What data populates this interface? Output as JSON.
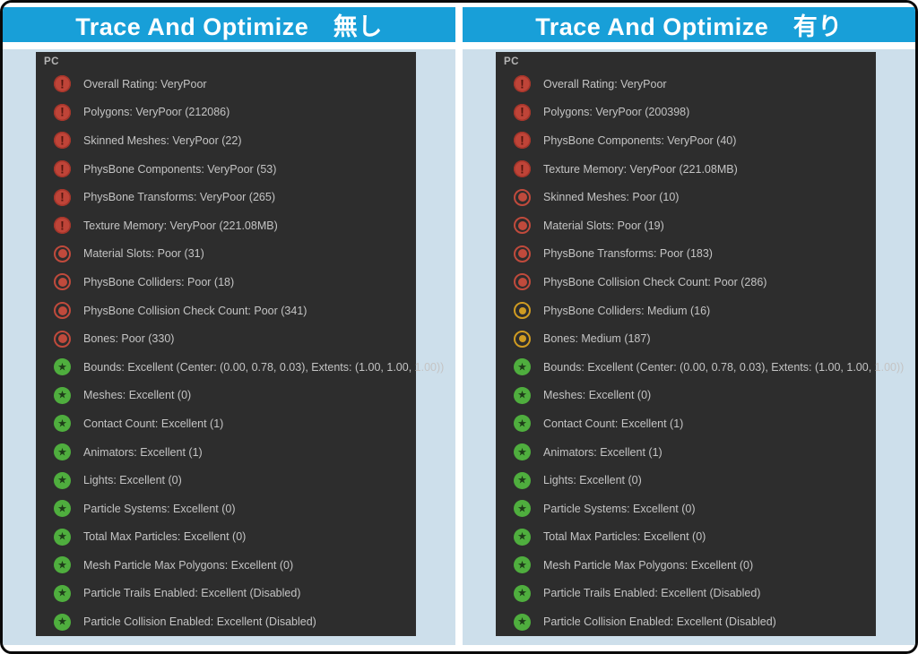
{
  "colors": {
    "header_blue": "#189fd8",
    "content_light_blue": "#cddfeb",
    "panel_dark": "#2d2d2d",
    "rating_verypoor": "#bf4438",
    "rating_poor": "#c04a3c",
    "rating_medium": "#cf9b22",
    "rating_excellent": "#4fae3e",
    "text_gray": "#c4c4c4"
  },
  "panels": [
    {
      "header": "Trace And Optimize　無し",
      "platform_label": "PC",
      "items": [
        {
          "rating": "verypoor",
          "text": "Overall Rating: VeryPoor"
        },
        {
          "rating": "verypoor",
          "text": "Polygons: VeryPoor (212086)"
        },
        {
          "rating": "verypoor",
          "text": "Skinned Meshes: VeryPoor (22)"
        },
        {
          "rating": "verypoor",
          "text": "PhysBone Components: VeryPoor (53)"
        },
        {
          "rating": "verypoor",
          "text": "PhysBone Transforms: VeryPoor (265)"
        },
        {
          "rating": "verypoor",
          "text": "Texture Memory: VeryPoor (221.08MB)"
        },
        {
          "rating": "poor",
          "text": "Material Slots: Poor (31)"
        },
        {
          "rating": "poor",
          "text": "PhysBone Colliders: Poor (18)"
        },
        {
          "rating": "poor",
          "text": "PhysBone Collision Check Count: Poor (341)"
        },
        {
          "rating": "poor",
          "text": "Bones: Poor (330)"
        },
        {
          "rating": "excellent",
          "text": "Bounds: Excellent (Center: (0.00, 0.78, 0.03), Extents: (1.00, 1.00, 1.00))"
        },
        {
          "rating": "excellent",
          "text": "Meshes: Excellent (0)"
        },
        {
          "rating": "excellent",
          "text": "Contact Count: Excellent (1)"
        },
        {
          "rating": "excellent",
          "text": "Animators: Excellent (1)"
        },
        {
          "rating": "excellent",
          "text": "Lights: Excellent (0)"
        },
        {
          "rating": "excellent",
          "text": "Particle Systems: Excellent (0)"
        },
        {
          "rating": "excellent",
          "text": "Total Max Particles: Excellent (0)"
        },
        {
          "rating": "excellent",
          "text": "Mesh Particle Max Polygons: Excellent (0)"
        },
        {
          "rating": "excellent",
          "text": "Particle Trails Enabled: Excellent (Disabled)"
        },
        {
          "rating": "excellent",
          "text": "Particle Collision Enabled: Excellent (Disabled)"
        }
      ]
    },
    {
      "header": "Trace And Optimize　有り",
      "platform_label": "PC",
      "items": [
        {
          "rating": "verypoor",
          "text": "Overall Rating: VeryPoor"
        },
        {
          "rating": "verypoor",
          "text": "Polygons: VeryPoor (200398)"
        },
        {
          "rating": "verypoor",
          "text": "PhysBone Components: VeryPoor (40)"
        },
        {
          "rating": "verypoor",
          "text": "Texture Memory: VeryPoor (221.08MB)"
        },
        {
          "rating": "poor",
          "text": "Skinned Meshes: Poor (10)"
        },
        {
          "rating": "poor",
          "text": "Material Slots: Poor (19)"
        },
        {
          "rating": "poor",
          "text": "PhysBone Transforms: Poor (183)"
        },
        {
          "rating": "poor",
          "text": "PhysBone Collision Check Count: Poor (286)"
        },
        {
          "rating": "medium",
          "text": "PhysBone Colliders: Medium (16)"
        },
        {
          "rating": "medium",
          "text": "Bones: Medium (187)"
        },
        {
          "rating": "excellent",
          "text": "Bounds: Excellent (Center: (0.00, 0.78, 0.03), Extents: (1.00, 1.00, 1.00))"
        },
        {
          "rating": "excellent",
          "text": "Meshes: Excellent (0)"
        },
        {
          "rating": "excellent",
          "text": "Contact Count: Excellent (1)"
        },
        {
          "rating": "excellent",
          "text": "Animators: Excellent (1)"
        },
        {
          "rating": "excellent",
          "text": "Lights: Excellent (0)"
        },
        {
          "rating": "excellent",
          "text": "Particle Systems: Excellent (0)"
        },
        {
          "rating": "excellent",
          "text": "Total Max Particles: Excellent (0)"
        },
        {
          "rating": "excellent",
          "text": "Mesh Particle Max Polygons: Excellent (0)"
        },
        {
          "rating": "excellent",
          "text": "Particle Trails Enabled: Excellent (Disabled)"
        },
        {
          "rating": "excellent",
          "text": "Particle Collision Enabled: Excellent (Disabled)"
        }
      ]
    }
  ]
}
